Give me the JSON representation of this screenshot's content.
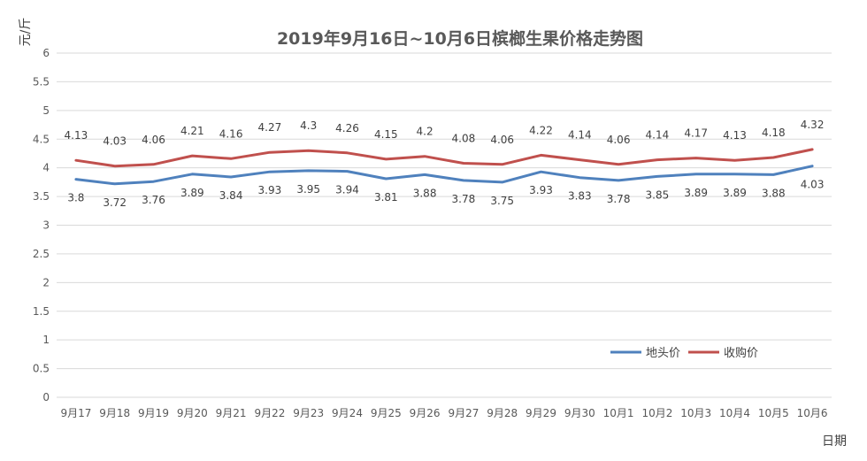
{
  "chart_data": {
    "type": "line",
    "title": "2019年9月16日~10月6日槟榔生果价格走势图",
    "ylabel": "元/斤",
    "xlabel": "日期",
    "ylim": [
      0,
      6
    ],
    "yticks": [
      "0",
      "0.5",
      "1",
      "1.5",
      "2",
      "2.5",
      "3",
      "3.5",
      "4",
      "4.5",
      "5",
      "5.5",
      "6"
    ],
    "grid": true,
    "legend_position": "bottom-right",
    "categories": [
      "9月17",
      "9月18",
      "9月19",
      "9月20",
      "9月21",
      "9月22",
      "9月23",
      "9月24",
      "9月25",
      "9月26",
      "9月27",
      "9月28",
      "9月29",
      "9月30",
      "10月1",
      "10月2",
      "10月3",
      "10月4",
      "10月5",
      "10月6"
    ],
    "series": [
      {
        "name": "地头价",
        "color": "#4f81bd",
        "values": [
          3.8,
          3.72,
          3.76,
          3.89,
          3.84,
          3.93,
          3.95,
          3.94,
          3.81,
          3.88,
          3.78,
          3.75,
          3.93,
          3.83,
          3.78,
          3.85,
          3.89,
          3.89,
          3.88,
          4.03
        ]
      },
      {
        "name": "收购价",
        "color": "#c0504d",
        "values": [
          4.13,
          4.03,
          4.06,
          4.21,
          4.16,
          4.27,
          4.3,
          4.26,
          4.15,
          4.2,
          4.08,
          4.06,
          4.22,
          4.14,
          4.06,
          4.14,
          4.17,
          4.13,
          4.18,
          4.32
        ]
      }
    ]
  }
}
